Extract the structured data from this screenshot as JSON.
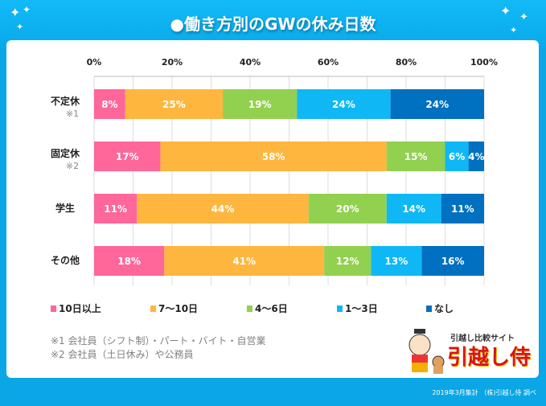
{
  "title": "●働き方別のGWの休み日数",
  "chart_data": {
    "type": "bar",
    "orientation": "horizontal",
    "stacked": true,
    "title": "●働き方別のGWの休み日数",
    "categories": [
      "不定休",
      "固定休",
      "学生",
      "その他"
    ],
    "category_notes": [
      "※1",
      "※2",
      "",
      ""
    ],
    "xlim": [
      0,
      100
    ],
    "xticks": [
      "0%",
      "20%",
      "40%",
      "60%",
      "80%",
      "100%"
    ],
    "grid": true,
    "legend_position": "bottom",
    "series": [
      {
        "name": "10日以上",
        "color": "#ff6699",
        "values": [
          8,
          17,
          11,
          18
        ]
      },
      {
        "name": "7～10日",
        "color": "#ffb63f",
        "values": [
          25,
          58,
          44,
          41
        ]
      },
      {
        "name": "4～6日",
        "color": "#92d050",
        "values": [
          19,
          15,
          20,
          12
        ]
      },
      {
        "name": "1～3日",
        "color": "#0fb8f5",
        "values": [
          24,
          6,
          14,
          13
        ]
      },
      {
        "name": "なし",
        "color": "#0070c0",
        "values": [
          24,
          4,
          11,
          16
        ]
      }
    ]
  },
  "notes": [
    "※1 会社員（シフト制）・パート・バイト・自営業",
    "※2 会社員（土日休み）や公務員"
  ],
  "logo": {
    "subtitle": "引越し比較サイト",
    "name": "引越し侍"
  },
  "credit": "2019年3月集計 （株)引越し侍 調べ"
}
